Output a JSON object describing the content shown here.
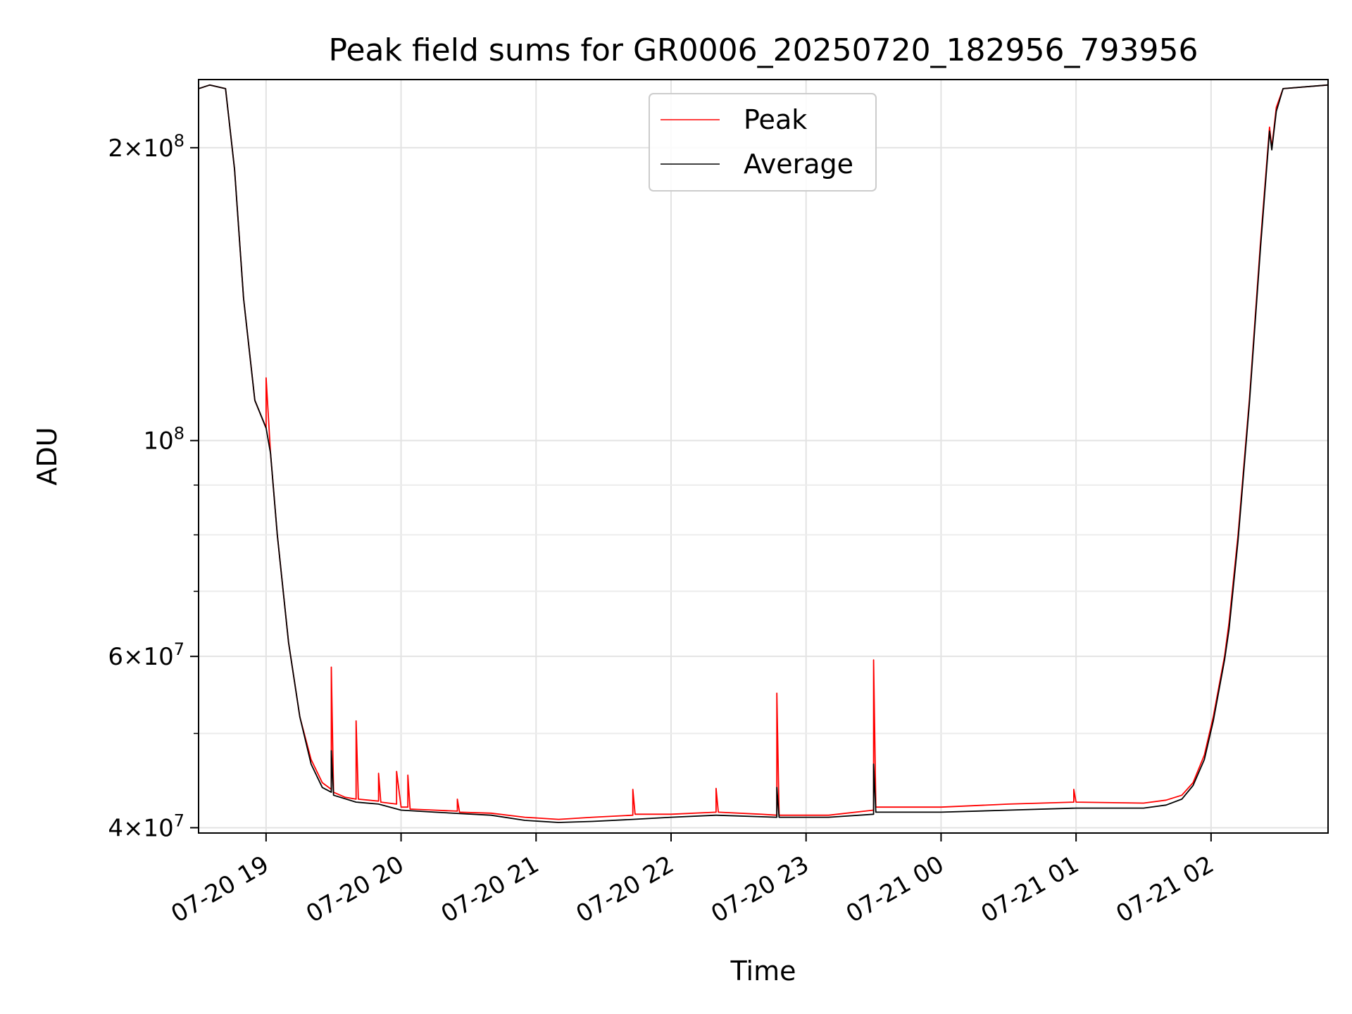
{
  "chart_data": {
    "type": "line",
    "title": "Peak field sums for GR0006_20250720_182956_793956",
    "xlabel": "Time",
    "ylabel": "ADU",
    "yscale": "log",
    "ylim": [
      39500000,
      235000000
    ],
    "xlim": [
      "2025-07-20 18:30",
      "2025-07-21 02:52"
    ],
    "grid": true,
    "legend_position": "top-center",
    "x_ticks": [
      {
        "t": "2025-07-20 19:00",
        "label": "07-20 19"
      },
      {
        "t": "2025-07-20 20:00",
        "label": "07-20 20"
      },
      {
        "t": "2025-07-20 21:00",
        "label": "07-20 21"
      },
      {
        "t": "2025-07-20 22:00",
        "label": "07-20 22"
      },
      {
        "t": "2025-07-20 23:00",
        "label": "07-20 23"
      },
      {
        "t": "2025-07-21 00:00",
        "label": "07-21 00"
      },
      {
        "t": "2025-07-21 01:00",
        "label": "07-21 01"
      },
      {
        "t": "2025-07-21 02:00",
        "label": "07-21 02"
      }
    ],
    "y_ticks": [
      {
        "value": 40000000,
        "base": "4×10",
        "exp": "7"
      },
      {
        "value": 60000000,
        "base": "6×10",
        "exp": "7"
      },
      {
        "value": 100000000,
        "base": "10",
        "exp": "8"
      },
      {
        "value": 200000000,
        "base": "2×10",
        "exp": "8"
      }
    ],
    "y_minor_ticks": [
      50000000,
      70000000,
      80000000,
      90000000
    ],
    "series": [
      {
        "name": "Peak",
        "color": "#ff0000",
        "points": [
          [
            "2025-07-20 18:30",
            230000000
          ],
          [
            "2025-07-20 18:35",
            232000000
          ],
          [
            "2025-07-20 18:42",
            230000000
          ],
          [
            "2025-07-20 18:46",
            190000000
          ],
          [
            "2025-07-20 18:50",
            140000000
          ],
          [
            "2025-07-20 18:55",
            110000000
          ],
          [
            "2025-07-20 19:00",
            103000000
          ],
          [
            "2025-07-20 19:00",
            116000000
          ],
          [
            "2025-07-20 19:02",
            97000000
          ],
          [
            "2025-07-20 19:05",
            80000000
          ],
          [
            "2025-07-20 19:10",
            62000000
          ],
          [
            "2025-07-20 19:15",
            52000000
          ],
          [
            "2025-07-20 19:20",
            47000000
          ],
          [
            "2025-07-20 19:25",
            44500000
          ],
          [
            "2025-07-20 19:29",
            43800000
          ],
          [
            "2025-07-20 19:29",
            58500000
          ],
          [
            "2025-07-20 19:30",
            43500000
          ],
          [
            "2025-07-20 19:35",
            43000000
          ],
          [
            "2025-07-20 19:40",
            42800000
          ],
          [
            "2025-07-20 19:40",
            51500000
          ],
          [
            "2025-07-20 19:41",
            42800000
          ],
          [
            "2025-07-20 19:50",
            42600000
          ],
          [
            "2025-07-20 19:50",
            45500000
          ],
          [
            "2025-07-20 19:51",
            42500000
          ],
          [
            "2025-07-20 19:58",
            42300000
          ],
          [
            "2025-07-20 19:58",
            45700000
          ],
          [
            "2025-07-20 20:00",
            42000000
          ],
          [
            "2025-07-20 20:03",
            42000000
          ],
          [
            "2025-07-20 20:03",
            45300000
          ],
          [
            "2025-07-20 20:04",
            41800000
          ],
          [
            "2025-07-20 20:15",
            41700000
          ],
          [
            "2025-07-20 20:25",
            41600000
          ],
          [
            "2025-07-20 20:25",
            42800000
          ],
          [
            "2025-07-20 20:26",
            41500000
          ],
          [
            "2025-07-20 20:40",
            41400000
          ],
          [
            "2025-07-20 20:55",
            41000000
          ],
          [
            "2025-07-20 21:10",
            40800000
          ],
          [
            "2025-07-20 21:25",
            41000000
          ],
          [
            "2025-07-20 21:43",
            41200000
          ],
          [
            "2025-07-20 21:43",
            43800000
          ],
          [
            "2025-07-20 21:44",
            41300000
          ],
          [
            "2025-07-20 22:00",
            41300000
          ],
          [
            "2025-07-20 22:20",
            41500000
          ],
          [
            "2025-07-20 22:20",
            43900000
          ],
          [
            "2025-07-20 22:21",
            41500000
          ],
          [
            "2025-07-20 22:40",
            41300000
          ],
          [
            "2025-07-20 22:47",
            41200000
          ],
          [
            "2025-07-20 22:47",
            55000000
          ],
          [
            "2025-07-20 22:48",
            41200000
          ],
          [
            "2025-07-20 23:10",
            41200000
          ],
          [
            "2025-07-20 23:30",
            41700000
          ],
          [
            "2025-07-20 23:30",
            59500000
          ],
          [
            "2025-07-20 23:31",
            42000000
          ],
          [
            "2025-07-21 00:00",
            42000000
          ],
          [
            "2025-07-21 00:30",
            42300000
          ],
          [
            "2025-07-21 00:59",
            42500000
          ],
          [
            "2025-07-21 00:59",
            43800000
          ],
          [
            "2025-07-21 01:00",
            42500000
          ],
          [
            "2025-07-21 01:30",
            42400000
          ],
          [
            "2025-07-21 01:40",
            42700000
          ],
          [
            "2025-07-21 01:47",
            43200000
          ],
          [
            "2025-07-21 01:52",
            44500000
          ],
          [
            "2025-07-21 01:57",
            47500000
          ],
          [
            "2025-07-21 02:01",
            52000000
          ],
          [
            "2025-07-21 02:06",
            60000000
          ],
          [
            "2025-07-21 02:08",
            65000000
          ],
          [
            "2025-07-21 02:12",
            80000000
          ],
          [
            "2025-07-21 02:17",
            110000000
          ],
          [
            "2025-07-21 02:22",
            160000000
          ],
          [
            "2025-07-21 02:26",
            210000000
          ],
          [
            "2025-07-21 02:27",
            200000000
          ],
          [
            "2025-07-21 02:29",
            220000000
          ],
          [
            "2025-07-21 02:32",
            230000000
          ],
          [
            "2025-07-21 02:52",
            232000000
          ]
        ]
      },
      {
        "name": "Average",
        "color": "#000000",
        "points": [
          [
            "2025-07-20 18:30",
            230000000
          ],
          [
            "2025-07-20 18:35",
            232000000
          ],
          [
            "2025-07-20 18:42",
            230000000
          ],
          [
            "2025-07-20 18:46",
            190000000
          ],
          [
            "2025-07-20 18:50",
            140000000
          ],
          [
            "2025-07-20 18:55",
            110000000
          ],
          [
            "2025-07-20 19:00",
            103000000
          ],
          [
            "2025-07-20 19:02",
            97000000
          ],
          [
            "2025-07-20 19:05",
            80000000
          ],
          [
            "2025-07-20 19:10",
            62000000
          ],
          [
            "2025-07-20 19:15",
            52000000
          ],
          [
            "2025-07-20 19:20",
            46500000
          ],
          [
            "2025-07-20 19:25",
            44000000
          ],
          [
            "2025-07-20 19:29",
            43500000
          ],
          [
            "2025-07-20 19:29",
            48000000
          ],
          [
            "2025-07-20 19:30",
            43200000
          ],
          [
            "2025-07-20 19:40",
            42500000
          ],
          [
            "2025-07-20 19:50",
            42300000
          ],
          [
            "2025-07-20 20:00",
            41700000
          ],
          [
            "2025-07-20 20:15",
            41500000
          ],
          [
            "2025-07-20 20:40",
            41200000
          ],
          [
            "2025-07-20 20:55",
            40700000
          ],
          [
            "2025-07-20 21:10",
            40500000
          ],
          [
            "2025-07-20 21:25",
            40600000
          ],
          [
            "2025-07-20 21:43",
            40800000
          ],
          [
            "2025-07-20 22:00",
            41000000
          ],
          [
            "2025-07-20 22:20",
            41200000
          ],
          [
            "2025-07-20 22:47",
            41000000
          ],
          [
            "2025-07-20 22:47",
            44000000
          ],
          [
            "2025-07-20 22:48",
            41000000
          ],
          [
            "2025-07-20 23:10",
            41000000
          ],
          [
            "2025-07-20 23:30",
            41300000
          ],
          [
            "2025-07-20 23:30",
            46500000
          ],
          [
            "2025-07-20 23:31",
            41500000
          ],
          [
            "2025-07-21 00:00",
            41500000
          ],
          [
            "2025-07-21 00:30",
            41700000
          ],
          [
            "2025-07-21 01:00",
            41900000
          ],
          [
            "2025-07-21 01:30",
            41900000
          ],
          [
            "2025-07-21 01:40",
            42200000
          ],
          [
            "2025-07-21 01:47",
            42800000
          ],
          [
            "2025-07-21 01:52",
            44200000
          ],
          [
            "2025-07-21 01:57",
            47000000
          ],
          [
            "2025-07-21 02:01",
            51500000
          ],
          [
            "2025-07-21 02:06",
            59500000
          ],
          [
            "2025-07-21 02:08",
            64000000
          ],
          [
            "2025-07-21 02:12",
            79000000
          ],
          [
            "2025-07-21 02:17",
            109000000
          ],
          [
            "2025-07-21 02:22",
            158000000
          ],
          [
            "2025-07-21 02:26",
            208000000
          ],
          [
            "2025-07-21 02:27",
            199000000
          ],
          [
            "2025-07-21 02:29",
            218000000
          ],
          [
            "2025-07-21 02:32",
            230000000
          ],
          [
            "2025-07-21 02:52",
            232000000
          ]
        ]
      }
    ]
  }
}
